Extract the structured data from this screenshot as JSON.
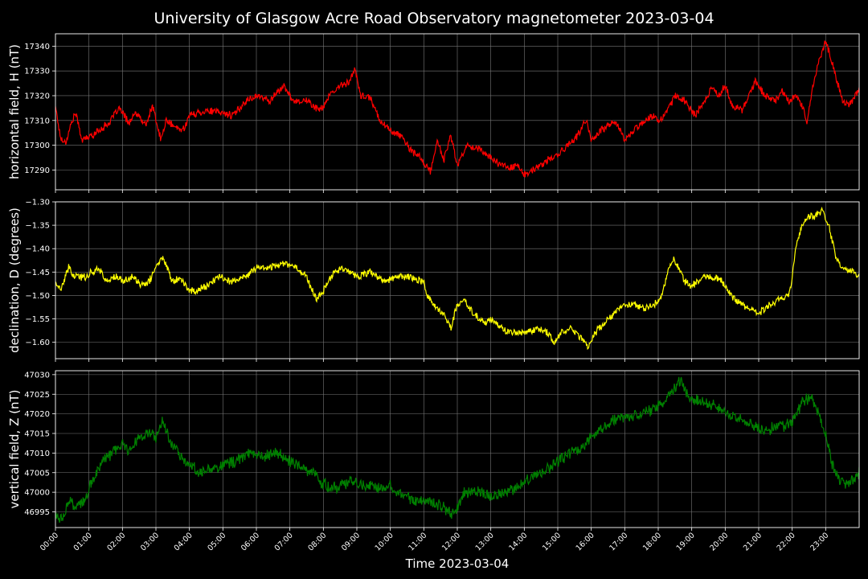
{
  "figure": {
    "title": "University of Glasgow Acre Road Observatory magnetometer 2023-03-04",
    "background": "#000000",
    "grid_color": "#777777"
  },
  "chart_data": [
    {
      "type": "line",
      "id": "H",
      "ylabel": "horizontal field, H (nT)",
      "xlabel": "",
      "color": "#ff0000",
      "ylim": [
        17282,
        17345
      ],
      "yticks": [
        "17290",
        "17300",
        "17310",
        "17320",
        "17330",
        "17340"
      ],
      "grid": true,
      "x_unit": "hour",
      "keypoints": [
        [
          0.0,
          17316
        ],
        [
          0.15,
          17303
        ],
        [
          0.3,
          17301
        ],
        [
          0.5,
          17310
        ],
        [
          0.6,
          17313
        ],
        [
          0.8,
          17302
        ],
        [
          1.1,
          17304
        ],
        [
          1.4,
          17307
        ],
        [
          1.6,
          17309
        ],
        [
          1.9,
          17315
        ],
        [
          2.2,
          17309
        ],
        [
          2.4,
          17313
        ],
        [
          2.7,
          17308
        ],
        [
          2.9,
          17316
        ],
        [
          3.0,
          17310
        ],
        [
          3.15,
          17302
        ],
        [
          3.3,
          17310
        ],
        [
          3.6,
          17307
        ],
        [
          3.8,
          17306
        ],
        [
          4.0,
          17312
        ],
        [
          4.5,
          17314
        ],
        [
          5.0,
          17313
        ],
        [
          5.3,
          17312
        ],
        [
          5.7,
          17318
        ],
        [
          6.0,
          17320
        ],
        [
          6.4,
          17318
        ],
        [
          6.8,
          17324
        ],
        [
          7.1,
          17318
        ],
        [
          7.5,
          17318
        ],
        [
          7.9,
          17314
        ],
        [
          8.2,
          17320
        ],
        [
          8.5,
          17324
        ],
        [
          8.8,
          17326
        ],
        [
          8.95,
          17331
        ],
        [
          9.1,
          17320
        ],
        [
          9.4,
          17319
        ],
        [
          9.7,
          17310
        ],
        [
          10.0,
          17306
        ],
        [
          10.3,
          17304
        ],
        [
          10.6,
          17298
        ],
        [
          10.9,
          17295
        ],
        [
          11.2,
          17289
        ],
        [
          11.4,
          17302
        ],
        [
          11.6,
          17294
        ],
        [
          11.8,
          17304
        ],
        [
          12.0,
          17292
        ],
        [
          12.3,
          17300
        ],
        [
          12.6,
          17299
        ],
        [
          12.9,
          17296
        ],
        [
          13.2,
          17293
        ],
        [
          13.5,
          17291
        ],
        [
          13.8,
          17292
        ],
        [
          14.0,
          17288
        ],
        [
          14.3,
          17290
        ],
        [
          14.7,
          17294
        ],
        [
          15.0,
          17296
        ],
        [
          15.3,
          17300
        ],
        [
          15.6,
          17304
        ],
        [
          15.85,
          17310
        ],
        [
          16.0,
          17302
        ],
        [
          16.3,
          17306
        ],
        [
          16.7,
          17310
        ],
        [
          17.0,
          17302
        ],
        [
          17.4,
          17308
        ],
        [
          17.8,
          17312
        ],
        [
          18.0,
          17310
        ],
        [
          18.2,
          17312
        ],
        [
          18.5,
          17320
        ],
        [
          18.8,
          17318
        ],
        [
          19.1,
          17312
        ],
        [
          19.4,
          17318
        ],
        [
          19.6,
          17324
        ],
        [
          19.8,
          17320
        ],
        [
          20.0,
          17324
        ],
        [
          20.2,
          17316
        ],
        [
          20.5,
          17314
        ],
        [
          20.7,
          17320
        ],
        [
          20.9,
          17326
        ],
        [
          21.2,
          17320
        ],
        [
          21.5,
          17318
        ],
        [
          21.7,
          17322
        ],
        [
          21.9,
          17318
        ],
        [
          22.1,
          17320
        ],
        [
          22.3,
          17316
        ],
        [
          22.45,
          17309
        ],
        [
          22.6,
          17323
        ],
        [
          22.8,
          17334
        ],
        [
          23.0,
          17342
        ],
        [
          23.2,
          17333
        ],
        [
          23.5,
          17318
        ],
        [
          23.7,
          17316
        ],
        [
          24.0,
          17323
        ]
      ]
    },
    {
      "type": "line",
      "id": "D",
      "ylabel": "declination, D (degrees)",
      "xlabel": "",
      "color": "#ffff00",
      "ylim": [
        -1.635,
        -1.3
      ],
      "yticks": [
        "−1.60",
        "−1.55",
        "−1.50",
        "−1.45",
        "−1.40",
        "−1.35",
        "−1.30"
      ],
      "grid": true,
      "x_unit": "hour",
      "keypoints": [
        [
          0.0,
          -1.47
        ],
        [
          0.15,
          -1.49
        ],
        [
          0.4,
          -1.44
        ],
        [
          0.55,
          -1.46
        ],
        [
          0.9,
          -1.46
        ],
        [
          1.1,
          -1.45
        ],
        [
          1.3,
          -1.44
        ],
        [
          1.5,
          -1.47
        ],
        [
          1.8,
          -1.46
        ],
        [
          2.0,
          -1.47
        ],
        [
          2.3,
          -1.46
        ],
        [
          2.6,
          -1.48
        ],
        [
          2.8,
          -1.47
        ],
        [
          3.0,
          -1.44
        ],
        [
          3.15,
          -1.42
        ],
        [
          3.3,
          -1.43
        ],
        [
          3.5,
          -1.47
        ],
        [
          3.7,
          -1.46
        ],
        [
          4.0,
          -1.49
        ],
        [
          4.2,
          -1.49
        ],
        [
          4.5,
          -1.48
        ],
        [
          4.9,
          -1.46
        ],
        [
          5.3,
          -1.47
        ],
        [
          5.7,
          -1.46
        ],
        [
          6.0,
          -1.44
        ],
        [
          6.4,
          -1.44
        ],
        [
          6.8,
          -1.43
        ],
        [
          7.2,
          -1.44
        ],
        [
          7.5,
          -1.46
        ],
        [
          7.8,
          -1.51
        ],
        [
          8.0,
          -1.49
        ],
        [
          8.3,
          -1.45
        ],
        [
          8.6,
          -1.44
        ],
        [
          9.0,
          -1.46
        ],
        [
          9.4,
          -1.45
        ],
        [
          9.8,
          -1.47
        ],
        [
          10.2,
          -1.46
        ],
        [
          10.6,
          -1.46
        ],
        [
          11.0,
          -1.47
        ],
        [
          11.1,
          -1.5
        ],
        [
          11.4,
          -1.53
        ],
        [
          11.6,
          -1.54
        ],
        [
          11.8,
          -1.57
        ],
        [
          12.0,
          -1.52
        ],
        [
          12.2,
          -1.51
        ],
        [
          12.5,
          -1.54
        ],
        [
          12.8,
          -1.56
        ],
        [
          13.0,
          -1.55
        ],
        [
          13.3,
          -1.57
        ],
        [
          13.6,
          -1.58
        ],
        [
          14.0,
          -1.58
        ],
        [
          14.4,
          -1.57
        ],
        [
          14.7,
          -1.58
        ],
        [
          14.9,
          -1.6
        ],
        [
          15.1,
          -1.58
        ],
        [
          15.4,
          -1.57
        ],
        [
          15.7,
          -1.59
        ],
        [
          15.9,
          -1.61
        ],
        [
          16.1,
          -1.58
        ],
        [
          16.4,
          -1.56
        ],
        [
          16.8,
          -1.53
        ],
        [
          17.0,
          -1.52
        ],
        [
          17.3,
          -1.52
        ],
        [
          17.6,
          -1.53
        ],
        [
          17.9,
          -1.52
        ],
        [
          18.1,
          -1.5
        ],
        [
          18.3,
          -1.45
        ],
        [
          18.45,
          -1.42
        ],
        [
          18.6,
          -1.44
        ],
        [
          18.8,
          -1.47
        ],
        [
          19.0,
          -1.48
        ],
        [
          19.3,
          -1.46
        ],
        [
          19.6,
          -1.46
        ],
        [
          19.9,
          -1.47
        ],
        [
          20.2,
          -1.5
        ],
        [
          20.5,
          -1.52
        ],
        [
          20.8,
          -1.53
        ],
        [
          21.0,
          -1.54
        ],
        [
          21.3,
          -1.52
        ],
        [
          21.6,
          -1.51
        ],
        [
          21.9,
          -1.5
        ],
        [
          22.0,
          -1.46
        ],
        [
          22.1,
          -1.4
        ],
        [
          22.3,
          -1.35
        ],
        [
          22.5,
          -1.33
        ],
        [
          22.7,
          -1.33
        ],
        [
          22.9,
          -1.32
        ],
        [
          23.1,
          -1.35
        ],
        [
          23.3,
          -1.42
        ],
        [
          23.5,
          -1.44
        ],
        [
          23.8,
          -1.45
        ],
        [
          24.0,
          -1.46
        ]
      ]
    },
    {
      "type": "line",
      "id": "Z",
      "ylabel": "vertical field, Z (nT)",
      "xlabel": "Time 2023-03-04",
      "color": "#008000",
      "ylim": [
        46991,
        47031
      ],
      "yticks": [
        "46995",
        "47000",
        "47005",
        "47010",
        "47015",
        "47020",
        "47025",
        "47030"
      ],
      "xticks": [
        "00:00",
        "01:00",
        "02:00",
        "03:00",
        "04:00",
        "05:00",
        "06:00",
        "07:00",
        "08:00",
        "09:00",
        "10:00",
        "11:00",
        "12:00",
        "13:00",
        "14:00",
        "15:00",
        "16:00",
        "17:00",
        "18:00",
        "19:00",
        "20:00",
        "21:00",
        "22:00",
        "23:00"
      ],
      "grid": true,
      "x_unit": "hour",
      "keypoints": [
        [
          0.0,
          46994
        ],
        [
          0.2,
          46993
        ],
        [
          0.4,
          46998
        ],
        [
          0.6,
          46996
        ],
        [
          0.9,
          46998
        ],
        [
          1.1,
          47003
        ],
        [
          1.4,
          47008
        ],
        [
          1.7,
          47010
        ],
        [
          2.0,
          47012
        ],
        [
          2.2,
          47011
        ],
        [
          2.5,
          47014
        ],
        [
          2.8,
          47015
        ],
        [
          3.0,
          47014
        ],
        [
          3.2,
          47018
        ],
        [
          3.5,
          47012
        ],
        [
          3.8,
          47009
        ],
        [
          4.0,
          47007
        ],
        [
          4.3,
          47005
        ],
        [
          4.6,
          47006
        ],
        [
          5.0,
          47007
        ],
        [
          5.4,
          47008
        ],
        [
          5.8,
          47010
        ],
        [
          6.2,
          47009
        ],
        [
          6.6,
          47010
        ],
        [
          7.0,
          47008
        ],
        [
          7.4,
          47006
        ],
        [
          7.7,
          47005
        ],
        [
          8.0,
          47002
        ],
        [
          8.4,
          47001
        ],
        [
          8.8,
          47003
        ],
        [
          9.2,
          47002
        ],
        [
          9.6,
          47001
        ],
        [
          10.0,
          47002
        ],
        [
          10.4,
          46999
        ],
        [
          10.8,
          46998
        ],
        [
          11.2,
          46998
        ],
        [
          11.6,
          46996
        ],
        [
          11.9,
          46994
        ],
        [
          12.2,
          47000
        ],
        [
          12.6,
          47000
        ],
        [
          13.0,
          46999
        ],
        [
          13.5,
          47000
        ],
        [
          13.9,
          47002
        ],
        [
          14.3,
          47004
        ],
        [
          14.7,
          47006
        ],
        [
          15.0,
          47008
        ],
        [
          15.4,
          47010
        ],
        [
          15.8,
          47012
        ],
        [
          16.2,
          47016
        ],
        [
          16.6,
          47018
        ],
        [
          17.0,
          47019
        ],
        [
          17.4,
          47020
        ],
        [
          17.8,
          47021
        ],
        [
          18.1,
          47023
        ],
        [
          18.4,
          47025
        ],
        [
          18.7,
          47029
        ],
        [
          18.9,
          47024
        ],
        [
          19.3,
          47023
        ],
        [
          19.7,
          47022
        ],
        [
          20.1,
          47020
        ],
        [
          20.5,
          47018
        ],
        [
          20.9,
          47017
        ],
        [
          21.2,
          47015
        ],
        [
          21.5,
          47017
        ],
        [
          21.8,
          47017
        ],
        [
          22.0,
          47018
        ],
        [
          22.3,
          47023
        ],
        [
          22.6,
          47024
        ],
        [
          22.8,
          47020
        ],
        [
          23.0,
          47015
        ],
        [
          23.2,
          47007
        ],
        [
          23.4,
          47003
        ],
        [
          23.7,
          47002
        ],
        [
          24.0,
          47005
        ]
      ],
      "noise": 1.6
    }
  ]
}
